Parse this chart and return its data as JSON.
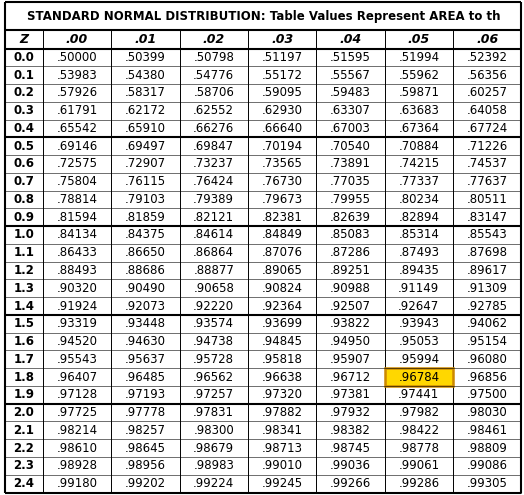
{
  "title": "STANDARD NORMAL DISTRIBUTION: Table Values Represent AREA to th",
  "columns": [
    "Z",
    ".00",
    ".01",
    ".02",
    ".03",
    ".04",
    ".05",
    ".06"
  ],
  "rows": [
    [
      "0.0",
      ".50000",
      ".50399",
      ".50798",
      ".51197",
      ".51595",
      ".51994",
      ".52392"
    ],
    [
      "0.1",
      ".53983",
      ".54380",
      ".54776",
      ".55172",
      ".55567",
      ".55962",
      ".56356"
    ],
    [
      "0.2",
      ".57926",
      ".58317",
      ".58706",
      ".59095",
      ".59483",
      ".59871",
      ".60257"
    ],
    [
      "0.3",
      ".61791",
      ".62172",
      ".62552",
      ".62930",
      ".63307",
      ".63683",
      ".64058"
    ],
    [
      "0.4",
      ".65542",
      ".65910",
      ".66276",
      ".66640",
      ".67003",
      ".67364",
      ".67724"
    ],
    [
      "0.5",
      ".69146",
      ".69497",
      ".69847",
      ".70194",
      ".70540",
      ".70884",
      ".71226"
    ],
    [
      "0.6",
      ".72575",
      ".72907",
      ".73237",
      ".73565",
      ".73891",
      ".74215",
      ".74537"
    ],
    [
      "0.7",
      ".75804",
      ".76115",
      ".76424",
      ".76730",
      ".77035",
      ".77337",
      ".77637"
    ],
    [
      "0.8",
      ".78814",
      ".79103",
      ".79389",
      ".79673",
      ".79955",
      ".80234",
      ".80511"
    ],
    [
      "0.9",
      ".81594",
      ".81859",
      ".82121",
      ".82381",
      ".82639",
      ".82894",
      ".83147"
    ],
    [
      "1.0",
      ".84134",
      ".84375",
      ".84614",
      ".84849",
      ".85083",
      ".85314",
      ".85543"
    ],
    [
      "1.1",
      ".86433",
      ".86650",
      ".86864",
      ".87076",
      ".87286",
      ".87493",
      ".87698"
    ],
    [
      "1.2",
      ".88493",
      ".88686",
      ".88877",
      ".89065",
      ".89251",
      ".89435",
      ".89617"
    ],
    [
      "1.3",
      ".90320",
      ".90490",
      ".90658",
      ".90824",
      ".90988",
      ".91149",
      ".91309"
    ],
    [
      "1.4",
      ".91924",
      ".92073",
      ".92220",
      ".92364",
      ".92507",
      ".92647",
      ".92785"
    ],
    [
      "1.5",
      ".93319",
      ".93448",
      ".93574",
      ".93699",
      ".93822",
      ".93943",
      ".94062"
    ],
    [
      "1.6",
      ".94520",
      ".94630",
      ".94738",
      ".94845",
      ".94950",
      ".95053",
      ".95154"
    ],
    [
      "1.7",
      ".95543",
      ".95637",
      ".95728",
      ".95818",
      ".95907",
      ".95994",
      ".96080"
    ],
    [
      "1.8",
      ".96407",
      ".96485",
      ".96562",
      ".96638",
      ".96712",
      ".96784",
      ".96856"
    ],
    [
      "1.9",
      ".97128",
      ".97193",
      ".97257",
      ".97320",
      ".97381",
      ".97441",
      ".97500"
    ],
    [
      "2.0",
      ".97725",
      ".97778",
      ".97831",
      ".97882",
      ".97932",
      ".97982",
      ".98030"
    ],
    [
      "2.1",
      ".98214",
      ".98257",
      ".98300",
      ".98341",
      ".98382",
      ".98422",
      ".98461"
    ],
    [
      "2.2",
      ".98610",
      ".98645",
      ".98679",
      ".98713",
      ".98745",
      ".98778",
      ".98809"
    ],
    [
      "2.3",
      ".98928",
      ".98956",
      ".98983",
      ".99010",
      ".99036",
      ".99061",
      ".99086"
    ],
    [
      "2.4",
      ".99180",
      ".99202",
      ".99224",
      ".99245",
      ".99266",
      ".99286",
      ".99305"
    ]
  ],
  "highlight_row": 19,
  "highlight_col": 7,
  "highlight_color": "#FFD700",
  "highlight_border_color": "#CC8800",
  "group_separators": [
    5,
    10,
    15,
    20
  ],
  "background_color": "#FFFFFF",
  "title_fontsize": 8.5,
  "header_fontsize": 9,
  "cell_fontsize": 8.5,
  "col_widths_raw": [
    0.55,
    1.0,
    1.0,
    1.0,
    1.0,
    1.0,
    1.0,
    1.0
  ]
}
